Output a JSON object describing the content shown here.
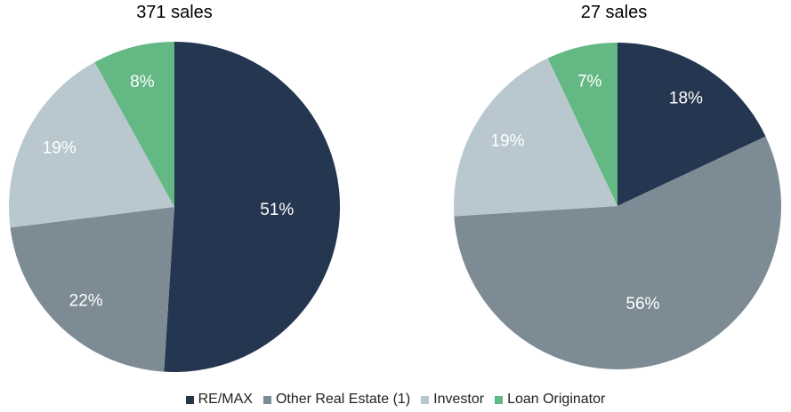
{
  "chart_data": [
    {
      "type": "pie",
      "title": "371 sales",
      "slices": [
        {
          "label": "RE/MAX",
          "value": 51,
          "display": "51%"
        },
        {
          "label": "Other Real Estate (1)",
          "value": 22,
          "display": "22%"
        },
        {
          "label": "Investor",
          "value": 19,
          "display": "19%"
        },
        {
          "label": "Loan Originator",
          "value": 8,
          "display": "8%"
        }
      ]
    },
    {
      "type": "pie",
      "title": "27 sales",
      "slices": [
        {
          "label": "RE/MAX",
          "value": 18,
          "display": "18%"
        },
        {
          "label": "Other Real Estate (1)",
          "value": 56,
          "display": "56%"
        },
        {
          "label": "Investor",
          "value": 19,
          "display": "19%"
        },
        {
          "label": "Loan Originator",
          "value": 7,
          "display": "7%"
        }
      ]
    }
  ],
  "legend": {
    "items": [
      {
        "label": "RE/MAX",
        "color": "#253650"
      },
      {
        "label": "Other Real Estate (1)",
        "color": "#7d8b95"
      },
      {
        "label": "Investor",
        "color": "#b9c8cf"
      },
      {
        "label": "Loan Originator",
        "color": "#64b884"
      }
    ],
    "position": "bottom"
  },
  "label_colors": [
    "#ffffff",
    "#ffffff",
    "#ffffff",
    "#ffffff"
  ]
}
